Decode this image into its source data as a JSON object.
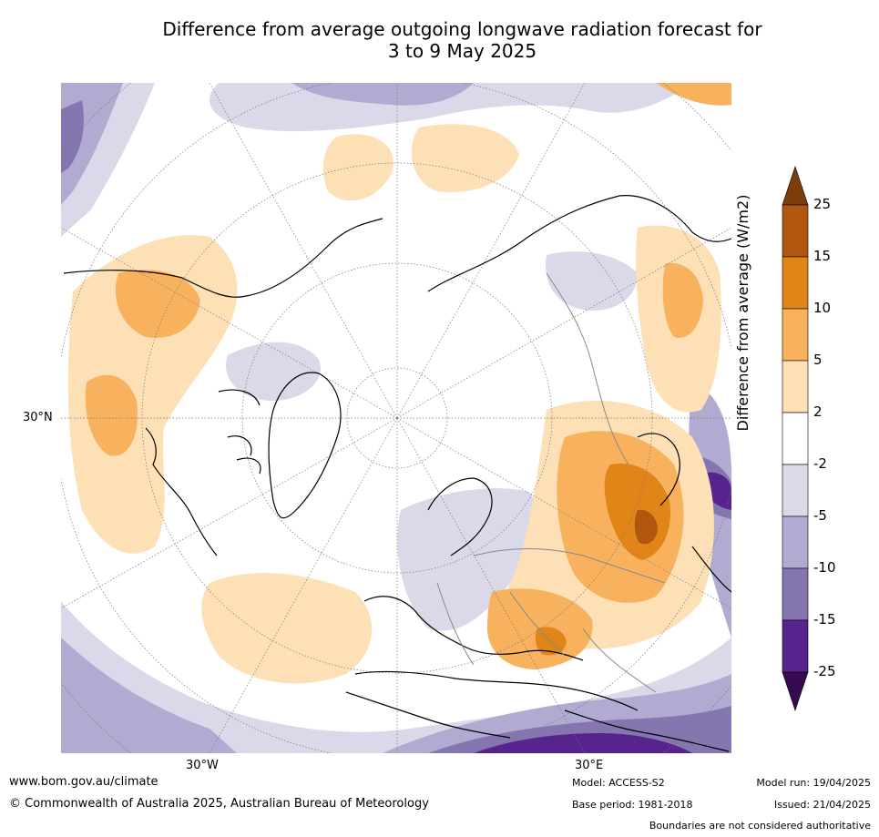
{
  "title_line1": "Difference from average outgoing longwave radiation forecast for",
  "title_line2": "3 to 9 May 2025",
  "map": {
    "labels": {
      "lat_30n": "30°N",
      "lon_30w": "30°W",
      "lon_30e": "30°E"
    }
  },
  "colorbar": {
    "title": "Difference from average (W/m2)",
    "ticks": [
      "25",
      "15",
      "10",
      "5",
      "2",
      "-2",
      "-5",
      "-10",
      "-15",
      "-25"
    ],
    "colors": {
      "above_25": "#7b3d0a",
      "15_25": "#b0560e",
      "10_15": "#e18519",
      "5_10": "#f8b25e",
      "2_5": "#fde0b5",
      "neutral": "#ffffff",
      "m2_m5": "#d9d9ea",
      "m5_m10": "#b1abd2",
      "m10_m15": "#8576b0",
      "m15_m25": "#56248c",
      "below_m25": "#360a4e"
    }
  },
  "footer": {
    "website": "www.bom.gov.au/climate",
    "copyright": "© Commonwealth of Australia 2025, Australian Bureau of Meteorology",
    "model": "Model: ACCESS-S2",
    "model_run": "Model run: 19/04/2025",
    "base_period": "Base period: 1981-2018",
    "issued": "Issued: 21/04/2025",
    "disclaimer": "Boundaries are not considered authoritative"
  }
}
